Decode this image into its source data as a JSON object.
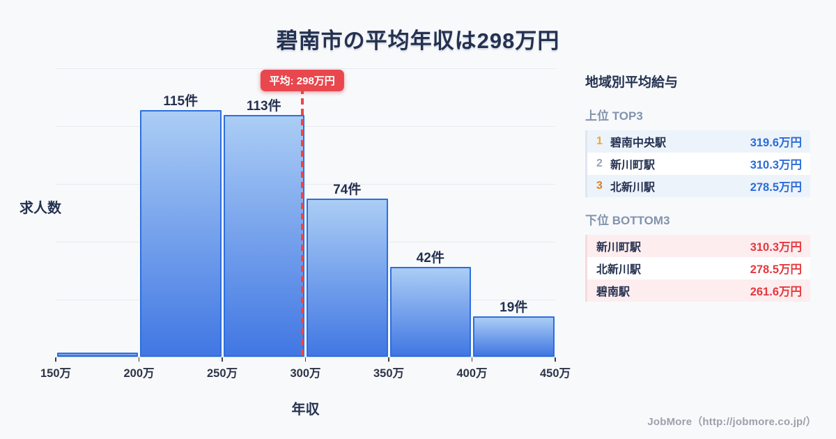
{
  "title": "碧南市の平均年収は298万円",
  "chart_data": {
    "type": "bar",
    "title": "碧南市の平均年収は298万円",
    "xlabel": "年収",
    "ylabel": "求人数",
    "unit_suffix": "件",
    "x_ticks": [
      "150万",
      "200万",
      "250万",
      "300万",
      "350万",
      "400万",
      "450万"
    ],
    "x_range_man": [
      150,
      450
    ],
    "bins": [
      "150万-200万",
      "200万-250万",
      "250万-300万",
      "300万-350万",
      "350万-400万",
      "400万-450万"
    ],
    "values": [
      2,
      115,
      113,
      74,
      42,
      19
    ],
    "bar_labels": [
      "",
      "115件",
      "113件",
      "74件",
      "42件",
      "19件"
    ],
    "ylim": [
      0,
      135
    ],
    "grid": true,
    "gridline_count": 5,
    "average_line": {
      "value_man": 298,
      "label": "平均: 298万円"
    }
  },
  "panel": {
    "header": "地域別平均給与",
    "top3": {
      "label": "上位 TOP3",
      "rows": [
        {
          "rank": "1",
          "name": "碧南中央駅",
          "value": "319.6万円"
        },
        {
          "rank": "2",
          "name": "新川町駅",
          "value": "310.3万円"
        },
        {
          "rank": "3",
          "name": "北新川駅",
          "value": "278.5万円"
        }
      ]
    },
    "bottom3": {
      "label": "下位 BOTTOM3",
      "rows": [
        {
          "name": "新川町駅",
          "value": "310.3万円"
        },
        {
          "name": "北新川駅",
          "value": "278.5万円"
        },
        {
          "name": "碧南駅",
          "value": "261.6万円"
        }
      ]
    }
  },
  "footer": {
    "credit": "JobMore（http://jobmore.co.jp/）"
  },
  "colors": {
    "background": "#f8f9fb",
    "text_dark": "#243150",
    "bar_border": "#2d6ede",
    "bar_gradient_top": "#abcdf5",
    "bar_gradient_bottom": "#4177e3",
    "gridline": "#e8eaef",
    "average_red": "#e8474d",
    "top_value_blue": "#2b6cd8",
    "bottom_value_red": "#e2393f",
    "rank1_gold": "#f0a823",
    "rank2_gray": "#9aa5b4",
    "rank3_orange": "#e0801f",
    "row_blue_bg": "#edf3fa",
    "row_pink_bg": "#fdedee",
    "subheader_gray": "#8293ad",
    "footer_gray": "#9ba1aa"
  }
}
